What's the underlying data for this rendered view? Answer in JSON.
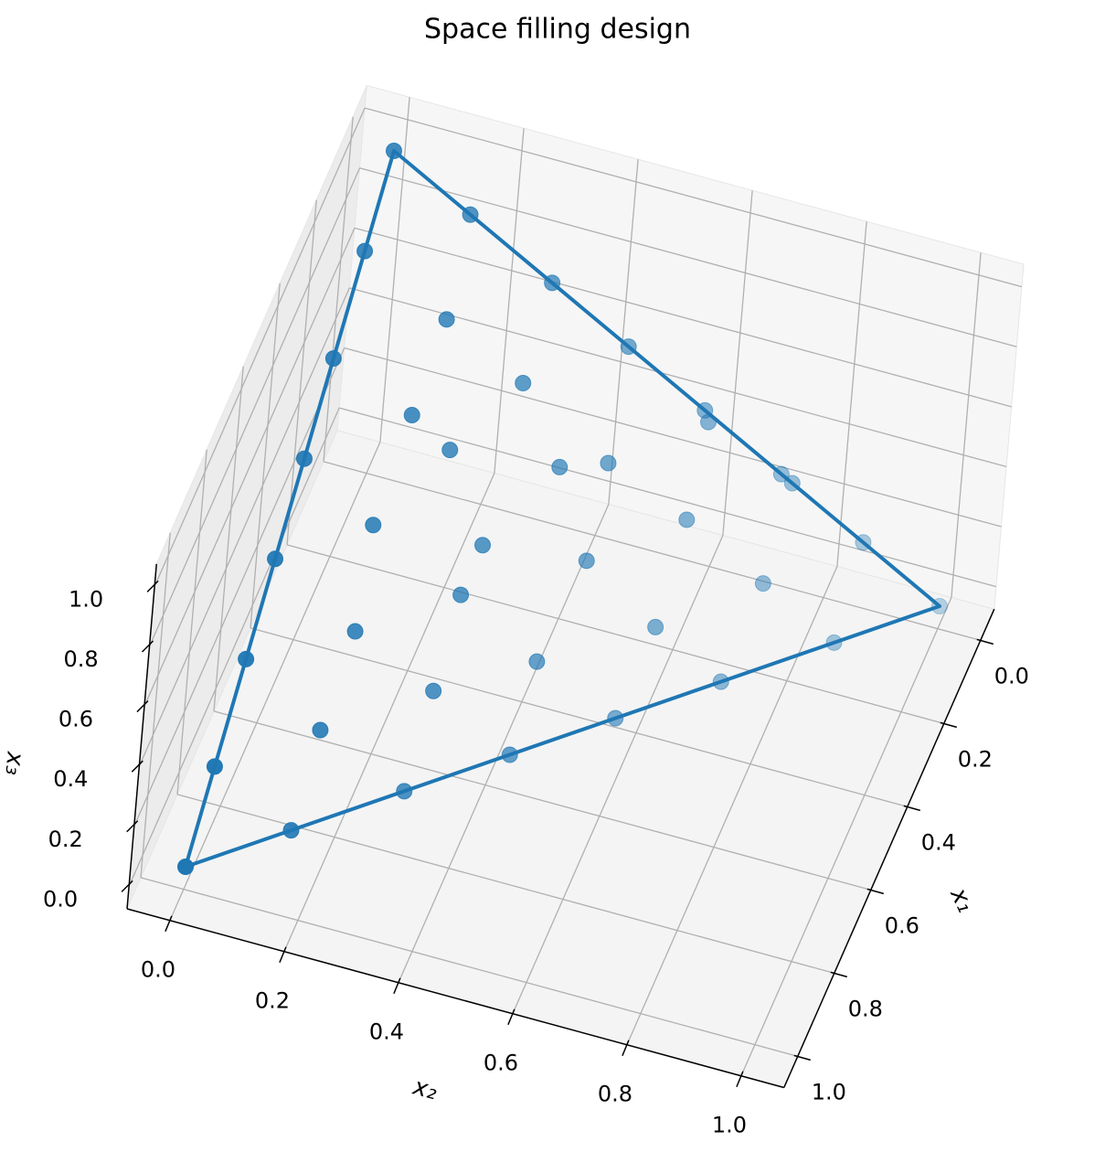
{
  "chart_data": {
    "type": "scatter3d",
    "title": "Space filling design",
    "xlabel": "x₁",
    "ylabel": "x₂",
    "zlabel": "x₃",
    "xlim": [
      -0.075,
      1.075
    ],
    "ylim": [
      -0.075,
      1.075
    ],
    "zlim": [
      -0.075,
      1.075
    ],
    "xticks": [
      {
        "value": 0,
        "label": "0.0"
      },
      {
        "value": 0.2,
        "label": "0.2"
      },
      {
        "value": 0.4,
        "label": "0.4"
      },
      {
        "value": 0.6,
        "label": "0.6"
      },
      {
        "value": 0.8,
        "label": "0.8"
      },
      {
        "value": 1,
        "label": "1.0"
      }
    ],
    "yticks": [
      {
        "value": 0,
        "label": "0.0"
      },
      {
        "value": 0.2,
        "label": "0.2"
      },
      {
        "value": 0.4,
        "label": "0.4"
      },
      {
        "value": 0.6,
        "label": "0.6"
      },
      {
        "value": 0.8,
        "label": "0.8"
      },
      {
        "value": 1,
        "label": "1.0"
      }
    ],
    "zticks": [
      {
        "value": 0,
        "label": "0.0"
      },
      {
        "value": 0.2,
        "label": "0.2"
      },
      {
        "value": 0.4,
        "label": "0.4"
      },
      {
        "value": 0.6,
        "label": "0.6"
      },
      {
        "value": 0.8,
        "label": "0.8"
      },
      {
        "value": 1,
        "label": "1.0"
      }
    ],
    "grid": true,
    "series": [
      {
        "type": "scatter",
        "color": "#1f77b4",
        "x": [
          1,
          0.86,
          0.71,
          0.57,
          0.43,
          0.29,
          0.14,
          0,
          0,
          0,
          0,
          0,
          0,
          0,
          0,
          0.01,
          0,
          0.86,
          0.71,
          0.57,
          0.43,
          0.29,
          0.14,
          0.14,
          0.14,
          0.28,
          0.28,
          0.2,
          0.15,
          0.44,
          0.36,
          0.28,
          0.14,
          0.14,
          0.58,
          0.44,
          0.44,
          0.29,
          0.72,
          0.57
        ],
        "y": [
          0,
          0,
          0,
          0,
          0,
          0,
          0,
          0,
          0.14,
          0.29,
          0.43,
          0.57,
          0.71,
          0.86,
          1,
          0.58,
          0.73,
          0.14,
          0.29,
          0.43,
          0.57,
          0.71,
          0.86,
          0.15,
          0.29,
          0.14,
          0.21,
          0.38,
          0.45,
          0.13,
          0.3,
          0.46,
          0.59,
          0.73,
          0.15,
          0.29,
          0.43,
          0.59,
          0.14,
          0.29
        ],
        "z": [
          0,
          0.14,
          0.29,
          0.43,
          0.57,
          0.71,
          0.86,
          1,
          0.86,
          0.71,
          0.57,
          0.43,
          0.29,
          0.14,
          0,
          0.41,
          0.27,
          0,
          0,
          0,
          0,
          0,
          0,
          0.71,
          0.57,
          0.58,
          0.5,
          0.42,
          0.4,
          0.43,
          0.34,
          0.26,
          0.27,
          0.13,
          0.28,
          0.28,
          0.13,
          0.12,
          0.14,
          0.14
        ]
      },
      {
        "type": "line",
        "color": "#1f77b4",
        "x": [
          1,
          0,
          0,
          1
        ],
        "y": [
          0,
          0,
          1,
          0
        ],
        "z": [
          0,
          1,
          0,
          0
        ]
      }
    ]
  }
}
